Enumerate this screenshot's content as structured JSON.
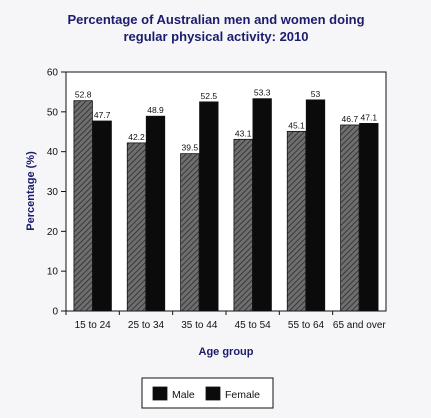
{
  "colors": {
    "male_fill": "#6e6e6e",
    "male_hatch": "#2b2b2b",
    "female_fill": "#0b0b0b",
    "title": "#1c1c6e",
    "plot_bg": "#ffffff",
    "page_bg": "#f6f6f8"
  },
  "chart_data": {
    "type": "bar",
    "title": [
      "Percentage of Australian men and women doing",
      "regular physical activity: 2010"
    ],
    "xlabel": "Age group",
    "ylabel": "Percentage (%)",
    "ylim": [
      0,
      60
    ],
    "yticks": [
      0,
      10,
      20,
      30,
      40,
      50,
      60
    ],
    "grid": false,
    "legend_position": "bottom-center",
    "categories": [
      "15 to 24",
      "25 to 34",
      "35 to 44",
      "45 to 54",
      "55 to 64",
      "65 and over"
    ],
    "series": [
      {
        "name": "Male",
        "values": [
          52.8,
          42.2,
          39.5,
          43.1,
          45.1,
          46.7
        ],
        "labels": [
          "52.8",
          "42.2",
          "39.5",
          "43.1",
          "45.1",
          "46.7"
        ],
        "pattern": "hatched"
      },
      {
        "name": "Female",
        "values": [
          47.7,
          48.9,
          52.5,
          53.3,
          53,
          47.1
        ],
        "labels": [
          "47.7",
          "48.9",
          "52.5",
          "53.3",
          "53",
          "47.1"
        ],
        "pattern": "solid"
      }
    ]
  }
}
